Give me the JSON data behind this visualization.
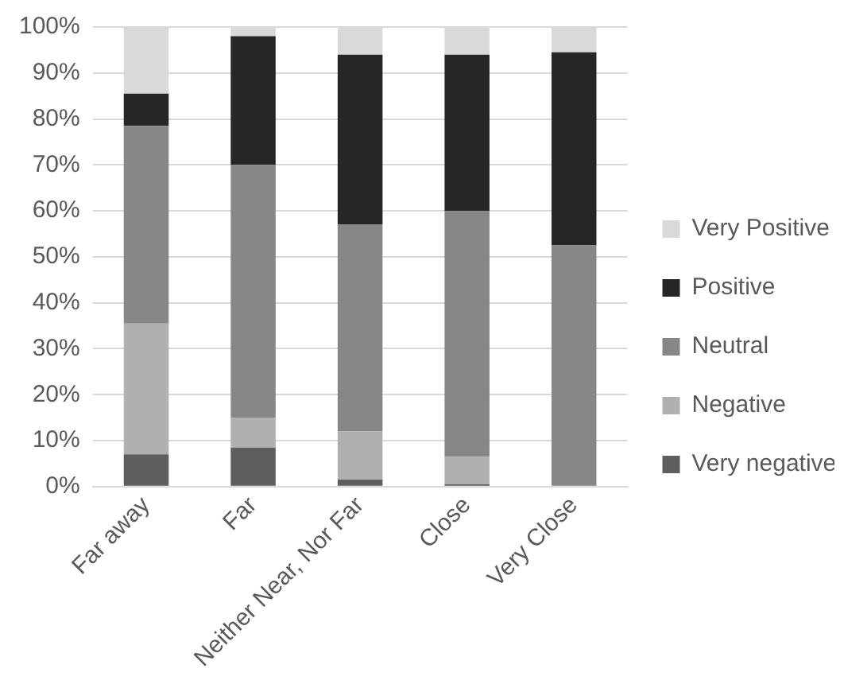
{
  "chart_data": {
    "type": "bar",
    "stacked": true,
    "categories": [
      "Far away",
      "Far",
      "Neither Near, Nor Far",
      "Close",
      "Very Close"
    ],
    "series": [
      {
        "name": "Very negative",
        "color": "#5e5e5e",
        "values": [
          7,
          8.5,
          1.5,
          0.5,
          0
        ]
      },
      {
        "name": "Negative",
        "color": "#b0b0b0",
        "values": [
          28.5,
          6.5,
          10.5,
          6,
          0
        ]
      },
      {
        "name": "Neutral",
        "color": "#878787",
        "values": [
          43,
          55,
          45,
          53.5,
          52.5
        ]
      },
      {
        "name": "Positive",
        "color": "#262626",
        "values": [
          7,
          28,
          37,
          34,
          42
        ]
      },
      {
        "name": "Very Positive",
        "color": "#d9d9d9",
        "values": [
          14.5,
          2,
          6,
          6,
          5.5
        ]
      }
    ],
    "ylim": [
      0,
      100
    ],
    "yticks": [
      {
        "value": 0,
        "label": "0%"
      },
      {
        "value": 10,
        "label": "10%"
      },
      {
        "value": 20,
        "label": "20%"
      },
      {
        "value": 30,
        "label": "30%"
      },
      {
        "value": 40,
        "label": "40%"
      },
      {
        "value": 50,
        "label": "50%"
      },
      {
        "value": 60,
        "label": "60%"
      },
      {
        "value": 70,
        "label": "70%"
      },
      {
        "value": 80,
        "label": "80%"
      },
      {
        "value": 90,
        "label": "90%"
      },
      {
        "value": 100,
        "label": "100%"
      }
    ],
    "grid": "y",
    "legend": "right"
  }
}
